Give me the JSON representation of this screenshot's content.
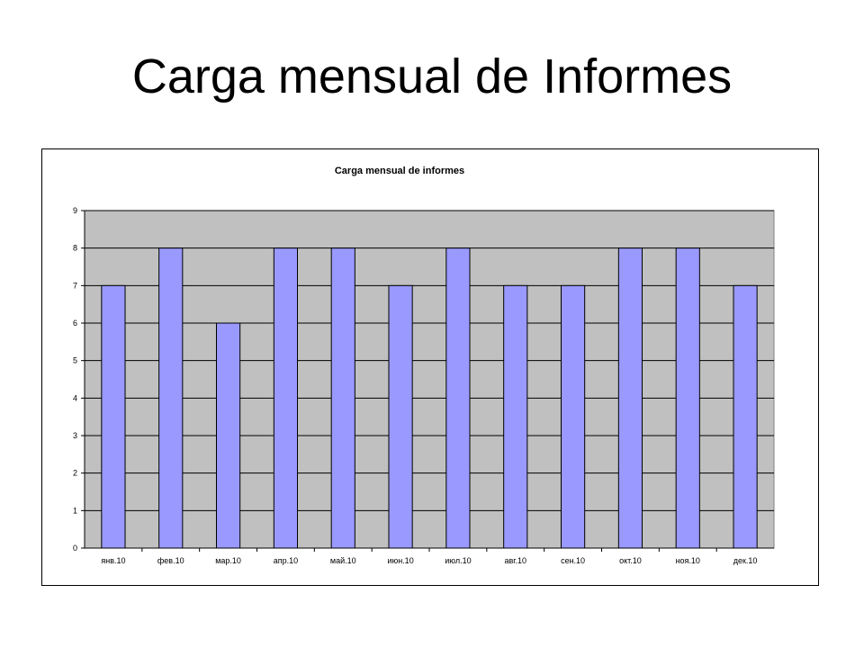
{
  "slide": {
    "title": "Carga mensual de Informes"
  },
  "colors": {
    "plot_background": "#c0c0c0",
    "bar_fill": "#9999ff",
    "bar_stroke": "#000000",
    "gridline": "#000000"
  },
  "chart_data": {
    "type": "bar",
    "title": "Carga mensual de informes",
    "xlabel": "",
    "ylabel": "",
    "categories": [
      "янв.10",
      "фев.10",
      "мар.10",
      "апр.10",
      "май.10",
      "июн.10",
      "июл.10",
      "авг.10",
      "сен.10",
      "окт.10",
      "ноя.10",
      "дек.10"
    ],
    "values": [
      7,
      8,
      6,
      8,
      8,
      7,
      8,
      7,
      7,
      8,
      8,
      7
    ],
    "ylim": [
      0,
      9
    ],
    "yticks": [
      0,
      1,
      2,
      3,
      4,
      5,
      6,
      7,
      8,
      9
    ],
    "grid": true,
    "legend": "none"
  }
}
